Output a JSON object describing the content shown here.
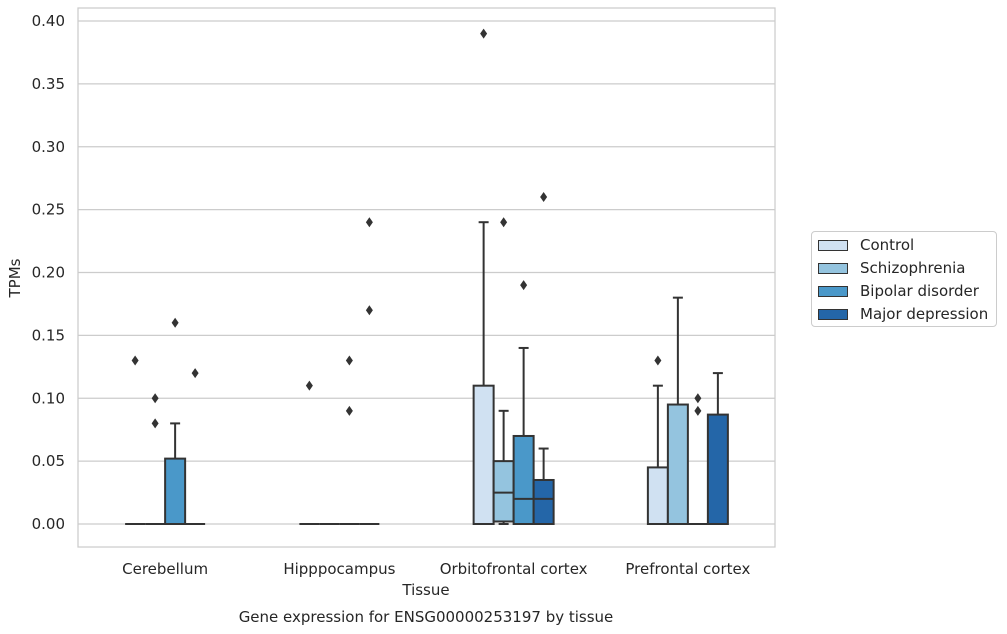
{
  "chart_data": {
    "type": "box",
    "title": "Gene expression for ENSG00000253197 by tissue",
    "xlabel": "Tissue",
    "ylabel": "TPMs",
    "ylim": [
      -0.019,
      0.41
    ],
    "yticks": [
      "0.00",
      "0.05",
      "0.10",
      "0.15",
      "0.20",
      "0.25",
      "0.30",
      "0.35",
      "0.40"
    ],
    "grid": "horizontal",
    "legend_position": "right",
    "categories": [
      "Cerebellum",
      "Hipppocampus",
      "Orbitofrontal cortex",
      "Prefrontal cortex"
    ],
    "series": [
      {
        "name": "Control",
        "color": "#d0e1f2",
        "boxes": [
          {
            "q1": 0.0,
            "median": 0.0,
            "q3": 0.0,
            "whisker_low": 0.0,
            "whisker_high": 0.0,
            "outliers": [
              0.13
            ]
          },
          {
            "q1": 0.0,
            "median": 0.0,
            "q3": 0.0,
            "whisker_low": 0.0,
            "whisker_high": 0.0,
            "outliers": [
              0.11
            ]
          },
          {
            "q1": 0.0,
            "median": 0.0,
            "q3": 0.11,
            "whisker_low": 0.0,
            "whisker_high": 0.24,
            "outliers": [
              0.39
            ]
          },
          {
            "q1": 0.0,
            "median": 0.0,
            "q3": 0.045,
            "whisker_low": 0.0,
            "whisker_high": 0.11,
            "outliers": [
              0.13
            ]
          }
        ]
      },
      {
        "name": "Schizophrenia",
        "color": "#94c4df",
        "boxes": [
          {
            "q1": 0.0,
            "median": 0.0,
            "q3": 0.0,
            "whisker_low": 0.0,
            "whisker_high": 0.0,
            "outliers": [
              0.1,
              0.08
            ]
          },
          {
            "q1": 0.0,
            "median": 0.0,
            "q3": 0.0,
            "whisker_low": 0.0,
            "whisker_high": 0.0,
            "outliers": []
          },
          {
            "q1": 0.002,
            "median": 0.025,
            "q3": 0.05,
            "whisker_low": 0.0,
            "whisker_high": 0.09,
            "outliers": [
              0.24
            ]
          },
          {
            "q1": 0.0,
            "median": 0.0,
            "q3": 0.095,
            "whisker_low": 0.0,
            "whisker_high": 0.18,
            "outliers": []
          }
        ]
      },
      {
        "name": "Bipolar disorder",
        "color": "#4a98c9",
        "boxes": [
          {
            "q1": 0.0,
            "median": 0.0,
            "q3": 0.052,
            "whisker_low": 0.0,
            "whisker_high": 0.08,
            "outliers": [
              0.16
            ]
          },
          {
            "q1": 0.0,
            "median": 0.0,
            "q3": 0.0,
            "whisker_low": 0.0,
            "whisker_high": 0.0,
            "outliers": [
              0.13,
              0.09
            ]
          },
          {
            "q1": 0.0,
            "median": 0.02,
            "q3": 0.07,
            "whisker_low": 0.0,
            "whisker_high": 0.14,
            "outliers": [
              0.19
            ]
          },
          {
            "q1": 0.0,
            "median": 0.0,
            "q3": 0.0,
            "whisker_low": 0.0,
            "whisker_high": 0.0,
            "outliers": [
              0.1,
              0.09
            ]
          }
        ]
      },
      {
        "name": "Major depression",
        "color": "#2466a8",
        "boxes": [
          {
            "q1": 0.0,
            "median": 0.0,
            "q3": 0.0,
            "whisker_low": 0.0,
            "whisker_high": 0.0,
            "outliers": [
              0.12
            ]
          },
          {
            "q1": 0.0,
            "median": 0.0,
            "q3": 0.0,
            "whisker_low": 0.0,
            "whisker_high": 0.0,
            "outliers": [
              0.24,
              0.17
            ]
          },
          {
            "q1": 0.0,
            "median": 0.02,
            "q3": 0.035,
            "whisker_low": 0.0,
            "whisker_high": 0.06,
            "outliers": [
              0.26
            ]
          },
          {
            "q1": 0.0,
            "median": 0.0,
            "q3": 0.087,
            "whisker_low": 0.0,
            "whisker_high": 0.12,
            "outliers": []
          }
        ]
      }
    ]
  }
}
